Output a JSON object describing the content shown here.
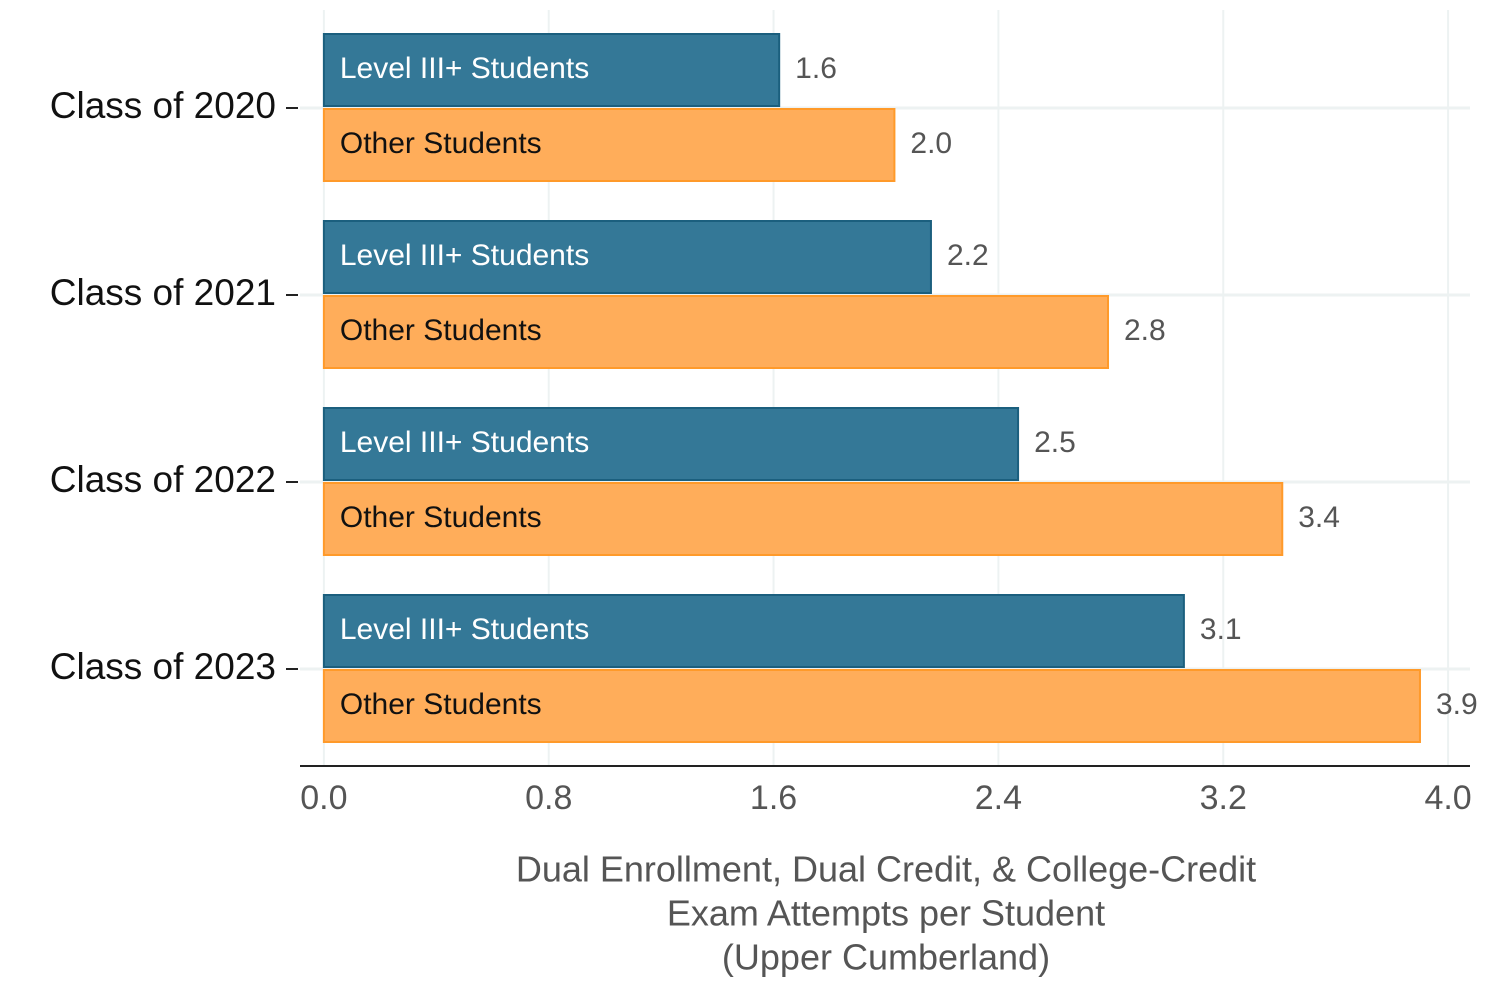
{
  "chart_data": {
    "type": "barh",
    "categories": [
      "Class of 2020",
      "Class of 2021",
      "Class of 2022",
      "Class of 2023"
    ],
    "series": [
      {
        "name": "Level III+ Students",
        "color": "#347897",
        "values": [
          1.62,
          2.16,
          2.47,
          3.06
        ],
        "value_labels": [
          "1.6",
          "2.2",
          "2.5",
          "3.1"
        ]
      },
      {
        "name": "Other Students",
        "color": "#ffad5a",
        "values": [
          2.03,
          2.79,
          3.41,
          3.9
        ],
        "value_labels": [
          "2.0",
          "2.8",
          "3.4",
          "3.9"
        ]
      }
    ],
    "xlabel": [
      "Dual Enrollment, Dual Credit, & College-Credit",
      "Exam Attempts per Student",
      "(Upper Cumberland)"
    ],
    "xlim": [
      -0.085,
      4.078
    ],
    "xticks": [
      {
        "value": 0,
        "label": "0.0"
      },
      0.8,
      1.6,
      2.4,
      3.2,
      {
        "value": 4,
        "label": "4.0"
      }
    ],
    "grid": true
  }
}
